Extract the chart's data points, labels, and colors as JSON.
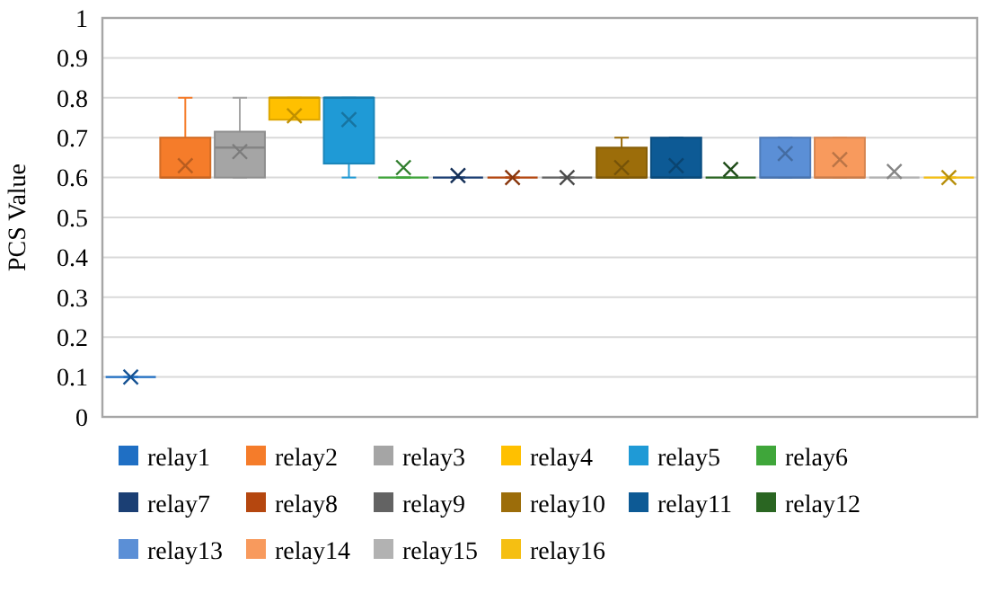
{
  "chart_data": {
    "type": "box",
    "ylabel": "PCS Value",
    "ylim": [
      0,
      1
    ],
    "yticks": [
      0,
      0.1,
      0.2,
      0.3,
      0.4,
      0.5,
      0.6,
      0.7,
      0.8,
      0.9,
      1
    ],
    "grid": "y",
    "legend": "bottom",
    "categories": [
      null,
      null,
      null,
      null,
      null,
      null,
      null,
      null,
      null,
      null,
      null,
      null,
      null,
      null,
      null,
      null
    ],
    "series": [
      {
        "name": "relay1",
        "color": "#1f6fc4",
        "boxes": [
          {
            "low": 0.1,
            "q1": 0.1,
            "median": 0.1,
            "q3": 0.1,
            "high": 0.1,
            "mean": 0.1
          },
          null,
          null,
          null,
          null,
          null,
          null,
          null,
          null,
          null,
          null,
          null,
          null,
          null,
          null,
          null
        ]
      },
      {
        "name": "relay2",
        "color": "#f57c2a",
        "boxes": [
          null,
          {
            "low": 0.6,
            "q1": 0.6,
            "median": 0.6,
            "q3": 0.7,
            "high": 0.8,
            "mean": 0.63
          },
          null,
          null,
          null,
          null,
          null,
          null,
          null,
          null,
          null,
          null,
          null,
          null,
          null,
          null
        ]
      },
      {
        "name": "relay3",
        "color": "#a5a5a5",
        "boxes": [
          null,
          null,
          {
            "low": 0.6,
            "q1": 0.6,
            "median": 0.675,
            "q3": 0.715,
            "high": 0.8,
            "mean": 0.665
          },
          null,
          null,
          null,
          null,
          null,
          null,
          null,
          null,
          null,
          null,
          null,
          null,
          null
        ]
      },
      {
        "name": "relay4",
        "color": "#ffc000",
        "boxes": [
          null,
          null,
          null,
          {
            "low": 0.745,
            "q1": 0.745,
            "median": 0.8,
            "q3": 0.8,
            "high": 0.8,
            "mean": 0.755
          },
          null,
          null,
          null,
          null,
          null,
          null,
          null,
          null,
          null,
          null,
          null,
          null
        ]
      },
      {
        "name": "relay5",
        "color": "#1f9ad6",
        "boxes": [
          null,
          null,
          null,
          null,
          {
            "low": 0.6,
            "q1": 0.635,
            "median": 0.8,
            "q3": 0.8,
            "high": 0.8,
            "mean": 0.745
          },
          null,
          null,
          null,
          null,
          null,
          null,
          null,
          null,
          null,
          null,
          null
        ]
      },
      {
        "name": "relay6",
        "color": "#3fa63a",
        "boxes": [
          null,
          null,
          null,
          null,
          null,
          {
            "low": 0.6,
            "q1": 0.6,
            "median": 0.6,
            "q3": 0.6,
            "high": 0.6,
            "mean": 0.625
          },
          null,
          null,
          null,
          null,
          null,
          null,
          null,
          null,
          null,
          null
        ]
      },
      {
        "name": "relay7",
        "color": "#1b3f74",
        "boxes": [
          null,
          null,
          null,
          null,
          null,
          null,
          {
            "low": 0.6,
            "q1": 0.6,
            "median": 0.6,
            "q3": 0.6,
            "high": 0.6,
            "mean": 0.605
          },
          null,
          null,
          null,
          null,
          null,
          null,
          null,
          null,
          null
        ]
      },
      {
        "name": "relay8",
        "color": "#b5470f",
        "boxes": [
          null,
          null,
          null,
          null,
          null,
          null,
          null,
          {
            "low": 0.6,
            "q1": 0.6,
            "median": 0.6,
            "q3": 0.6,
            "high": 0.6,
            "mean": 0.6
          },
          null,
          null,
          null,
          null,
          null,
          null,
          null,
          null
        ]
      },
      {
        "name": "relay9",
        "color": "#636363",
        "boxes": [
          null,
          null,
          null,
          null,
          null,
          null,
          null,
          null,
          {
            "low": 0.6,
            "q1": 0.6,
            "median": 0.6,
            "q3": 0.6,
            "high": 0.6,
            "mean": 0.6
          },
          null,
          null,
          null,
          null,
          null,
          null,
          null
        ]
      },
      {
        "name": "relay10",
        "color": "#9c6d0a",
        "boxes": [
          null,
          null,
          null,
          null,
          null,
          null,
          null,
          null,
          null,
          {
            "low": 0.6,
            "q1": 0.6,
            "median": 0.6,
            "q3": 0.675,
            "high": 0.7,
            "mean": 0.625
          },
          null,
          null,
          null,
          null,
          null,
          null
        ]
      },
      {
        "name": "relay11",
        "color": "#0d5a95",
        "boxes": [
          null,
          null,
          null,
          null,
          null,
          null,
          null,
          null,
          null,
          null,
          {
            "low": 0.6,
            "q1": 0.6,
            "median": 0.6,
            "q3": 0.7,
            "high": 0.7,
            "mean": 0.63
          },
          null,
          null,
          null,
          null,
          null
        ]
      },
      {
        "name": "relay12",
        "color": "#2a6622",
        "boxes": [
          null,
          null,
          null,
          null,
          null,
          null,
          null,
          null,
          null,
          null,
          null,
          {
            "low": 0.6,
            "q1": 0.6,
            "median": 0.6,
            "q3": 0.6,
            "high": 0.6,
            "mean": 0.62
          },
          null,
          null,
          null,
          null
        ]
      },
      {
        "name": "relay13",
        "color": "#5b8fd6",
        "boxes": [
          null,
          null,
          null,
          null,
          null,
          null,
          null,
          null,
          null,
          null,
          null,
          null,
          {
            "low": 0.6,
            "q1": 0.6,
            "median": 0.6,
            "q3": 0.7,
            "high": 0.7,
            "mean": 0.66
          },
          null,
          null,
          null
        ]
      },
      {
        "name": "relay14",
        "color": "#f89a5d",
        "boxes": [
          null,
          null,
          null,
          null,
          null,
          null,
          null,
          null,
          null,
          null,
          null,
          null,
          null,
          {
            "low": 0.6,
            "q1": 0.6,
            "median": 0.6,
            "q3": 0.7,
            "high": 0.7,
            "mean": 0.645
          },
          null,
          null
        ]
      },
      {
        "name": "relay15",
        "color": "#b2b2b2",
        "boxes": [
          null,
          null,
          null,
          null,
          null,
          null,
          null,
          null,
          null,
          null,
          null,
          null,
          null,
          null,
          {
            "low": 0.6,
            "q1": 0.6,
            "median": 0.6,
            "q3": 0.6,
            "high": 0.6,
            "mean": 0.615
          },
          null
        ]
      },
      {
        "name": "relay16",
        "color": "#f5bf12",
        "boxes": [
          null,
          null,
          null,
          null,
          null,
          null,
          null,
          null,
          null,
          null,
          null,
          null,
          null,
          null,
          null,
          {
            "low": 0.6,
            "q1": 0.6,
            "median": 0.6,
            "q3": 0.6,
            "high": 0.6,
            "mean": 0.6
          }
        ]
      }
    ]
  }
}
